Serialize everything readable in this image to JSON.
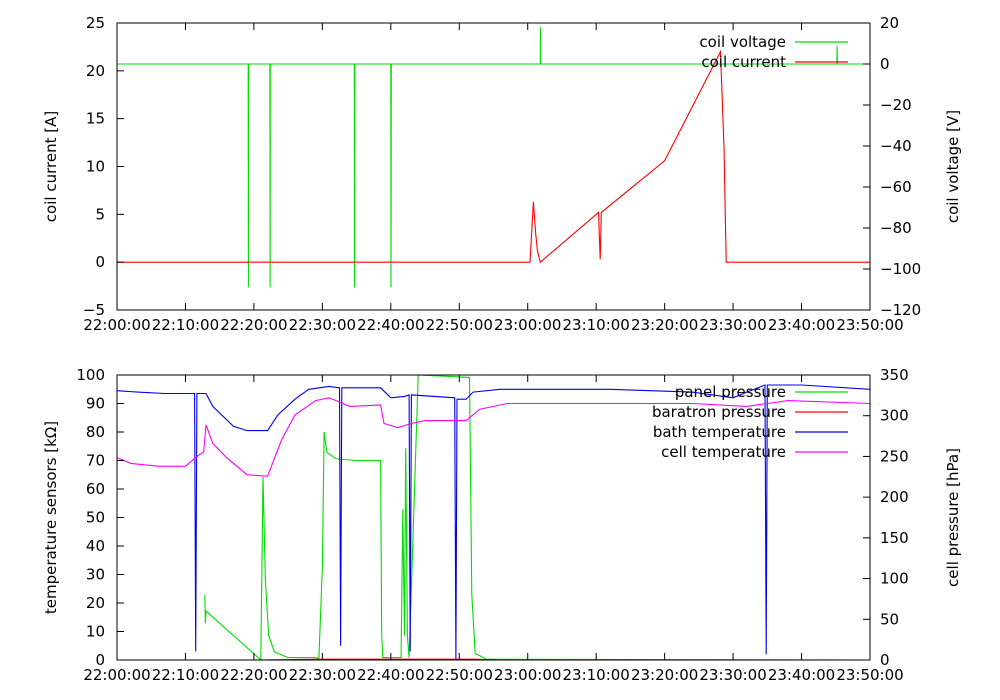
{
  "chart_data": [
    {
      "type": "line",
      "ylabel": "coil current [A]",
      "y2label": "coil voltage [V]",
      "xlim": [
        "22:00:00",
        "23:50:00"
      ],
      "ylim": [
        -5,
        25
      ],
      "y2lim": [
        -120,
        20
      ],
      "x_ticks": [
        "22:00:00",
        "22:10:00",
        "22:20:00",
        "22:30:00",
        "22:40:00",
        "22:50:00",
        "23:00:00",
        "23:10:00",
        "23:20:00",
        "23:30:00",
        "23:40:00",
        "23:50:00"
      ],
      "y_ticks": [
        -5,
        0,
        5,
        10,
        15,
        20,
        25
      ],
      "y2_ticks": [
        -120,
        -100,
        -80,
        -60,
        -40,
        -20,
        0,
        20
      ],
      "legend_position": "top-right",
      "colors": {
        "coil voltage": "#00dd00",
        "coil current": "#ff0000"
      },
      "series": [
        {
          "name": "coil voltage",
          "axis": "right",
          "points": [
            [
              "22:00:00",
              0
            ],
            [
              "22:19:10",
              0
            ],
            [
              "22:19:12",
              -109
            ],
            [
              "22:19:14",
              0
            ],
            [
              "22:22:20",
              0
            ],
            [
              "22:22:22",
              -109
            ],
            [
              "22:22:24",
              0
            ],
            [
              "22:34:40",
              0
            ],
            [
              "22:34:42",
              -109
            ],
            [
              "22:34:44",
              0
            ],
            [
              "22:40:00",
              0
            ],
            [
              "22:40:02",
              -109
            ],
            [
              "22:40:04",
              0
            ],
            [
              "23:01:50",
              0
            ],
            [
              "23:01:52",
              18
            ],
            [
              "23:01:54",
              0
            ],
            [
              "23:45:10",
              0
            ],
            [
              "23:45:12",
              9
            ],
            [
              "23:45:14",
              0
            ],
            [
              "23:50:00",
              0
            ]
          ]
        },
        {
          "name": "coil current",
          "axis": "left",
          "points": [
            [
              "22:00:00",
              0
            ],
            [
              "23:00:20",
              0
            ],
            [
              "23:00:50",
              6.3
            ],
            [
              "23:01:10",
              3
            ],
            [
              "23:01:25",
              1.2
            ],
            [
              "23:01:50",
              0
            ],
            [
              "23:10:20",
              5.2
            ],
            [
              "23:10:35",
              0.3
            ],
            [
              "23:10:45",
              5.2
            ],
            [
              "23:20:00",
              10.6
            ],
            [
              "23:28:10",
              22
            ],
            [
              "23:28:40",
              12
            ],
            [
              "23:29:00",
              0
            ],
            [
              "23:50:00",
              0
            ]
          ]
        }
      ]
    },
    {
      "type": "line",
      "ylabel": "temperature sensors [kΩ]",
      "y2label": "cell pressure [hPa]",
      "xlim": [
        "22:00:00",
        "23:50:00"
      ],
      "ylim": [
        0,
        100
      ],
      "y2lim": [
        0,
        350
      ],
      "x_ticks": [
        "22:00:00",
        "22:10:00",
        "22:20:00",
        "22:30:00",
        "22:40:00",
        "22:50:00",
        "23:00:00",
        "23:10:00",
        "23:20:00",
        "23:30:00",
        "23:40:00",
        "23:50:00"
      ],
      "y_ticks": [
        0,
        10,
        20,
        30,
        40,
        50,
        60,
        70,
        80,
        90,
        100
      ],
      "y2_ticks": [
        0,
        50,
        100,
        150,
        200,
        250,
        300,
        350
      ],
      "legend_position": "top-right",
      "colors": {
        "panel pressure": "#00dd00",
        "baratron pressure": "#ff0000",
        "bath temperature": "#0000ee",
        "cell temperature": "#ff00ff"
      },
      "series": [
        {
          "name": "panel pressure",
          "axis": "right",
          "points": [
            [
              "22:12:50",
              80
            ],
            [
              "22:12:55",
              45
            ],
            [
              "22:13:00",
              60
            ],
            [
              "22:21:00",
              0
            ],
            [
              "22:21:20",
              225
            ],
            [
              "22:21:40",
              100
            ],
            [
              "22:22:10",
              30
            ],
            [
              "22:23:00",
              10
            ],
            [
              "22:25:00",
              3
            ],
            [
              "22:29:00",
              3
            ],
            [
              "22:29:30",
              2
            ],
            [
              "22:30:00",
              115
            ],
            [
              "22:30:15",
              280
            ],
            [
              "22:30:40",
              255
            ],
            [
              "22:32:00",
              247
            ],
            [
              "22:35:00",
              245
            ],
            [
              "22:38:30",
              245
            ],
            [
              "22:38:40",
              30
            ],
            [
              "22:38:50",
              3
            ],
            [
              "22:41:30",
              3
            ],
            [
              "22:41:45",
              185
            ],
            [
              "22:42:00",
              30
            ],
            [
              "22:42:10",
              260
            ],
            [
              "22:42:25",
              30
            ],
            [
              "22:42:40",
              3
            ],
            [
              "22:44:00",
              350
            ],
            [
              "22:51:30",
              347
            ],
            [
              "22:51:50",
              80
            ],
            [
              "22:52:20",
              8
            ],
            [
              "22:54:00",
              1
            ],
            [
              "23:50:00",
              0
            ]
          ]
        },
        {
          "name": "baratron pressure",
          "axis": "right",
          "points": [
            [
              "22:00:00",
              0
            ],
            [
              "22:20:00",
              0
            ],
            [
              "22:30:00",
              1
            ],
            [
              "22:52:00",
              1
            ],
            [
              "22:56:00",
              0
            ],
            [
              "23:50:00",
              0
            ]
          ]
        },
        {
          "name": "bath temperature",
          "axis": "left",
          "points": [
            [
              "22:00:00",
              94.5
            ],
            [
              "22:03:00",
              94
            ],
            [
              "22:07:00",
              93.5
            ],
            [
              "22:11:20",
              93.5
            ],
            [
              "22:11:30",
              3
            ],
            [
              "22:11:40",
              93.5
            ],
            [
              "22:13:00",
              93.5
            ],
            [
              "22:14:00",
              89
            ],
            [
              "22:17:00",
              82
            ],
            [
              "22:19:00",
              80.5
            ],
            [
              "22:22:00",
              80.5
            ],
            [
              "22:23:30",
              86
            ],
            [
              "22:26:00",
              91.5
            ],
            [
              "22:28:00",
              95
            ],
            [
              "22:31:00",
              96
            ],
            [
              "22:32:30",
              95.5
            ],
            [
              "22:32:40",
              5
            ],
            [
              "22:32:50",
              95.5
            ],
            [
              "22:38:30",
              95.5
            ],
            [
              "22:40:00",
              92
            ],
            [
              "22:42:00",
              92.5
            ],
            [
              "22:42:40",
              93
            ],
            [
              "22:42:50",
              3
            ],
            [
              "22:43:00",
              93
            ],
            [
              "22:49:20",
              92
            ],
            [
              "22:49:30",
              0
            ],
            [
              "22:49:40",
              91.5
            ],
            [
              "22:51:00",
              91.5
            ],
            [
              "22:52:00",
              94
            ],
            [
              "22:56:00",
              95
            ],
            [
              "23:12:00",
              95
            ],
            [
              "23:24:00",
              94
            ],
            [
              "23:30:00",
              92
            ],
            [
              "23:32:00",
              94
            ],
            [
              "23:34:40",
              96.5
            ],
            [
              "23:34:50",
              2
            ],
            [
              "23:35:00",
              96.5
            ],
            [
              "23:40:00",
              96.5
            ],
            [
              "23:50:00",
              95
            ]
          ]
        },
        {
          "name": "cell temperature",
          "axis": "left",
          "points": [
            [
              "22:00:00",
              71
            ],
            [
              "22:02:00",
              69
            ],
            [
              "22:06:00",
              68
            ],
            [
              "22:10:00",
              68
            ],
            [
              "22:12:00",
              72
            ],
            [
              "22:12:40",
              73
            ],
            [
              "22:13:00",
              82.5
            ],
            [
              "22:14:00",
              76
            ],
            [
              "22:16:00",
              71
            ],
            [
              "22:19:00",
              65
            ],
            [
              "22:22:00",
              64.5
            ],
            [
              "22:24:00",
              77
            ],
            [
              "22:26:00",
              86
            ],
            [
              "22:29:00",
              91
            ],
            [
              "22:31:00",
              92
            ],
            [
              "22:34:00",
              89
            ],
            [
              "22:38:30",
              89.5
            ],
            [
              "22:39:00",
              83
            ],
            [
              "22:41:00",
              81.5
            ],
            [
              "22:43:00",
              83
            ],
            [
              "22:45:00",
              84
            ],
            [
              "22:51:00",
              84
            ],
            [
              "22:53:00",
              88
            ],
            [
              "22:57:00",
              90
            ],
            [
              "23:10:00",
              90
            ],
            [
              "23:24:00",
              90
            ],
            [
              "23:32:00",
              89
            ],
            [
              "23:38:00",
              91
            ],
            [
              "23:50:00",
              90
            ]
          ]
        }
      ]
    }
  ]
}
